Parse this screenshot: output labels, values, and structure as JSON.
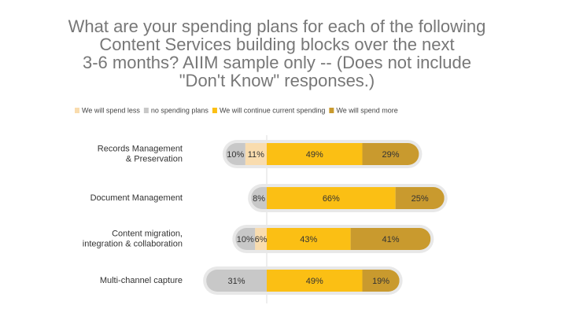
{
  "chart_data": {
    "type": "diverging-bar",
    "title": "What are your spending plans for each of the following\nContent Services building blocks over the next\n3-6 months? AIIM sample only -- (Does not include\n\"Don't Know\" responses.)",
    "categories": [
      "Records Management\n& Preservation",
      "Document Management",
      "Content migration,\nintegration & collaboration",
      "Multi-channel capture"
    ],
    "series": [
      {
        "name": "We will spend less",
        "color": "#f9dcae",
        "side": "left",
        "values": [
          11,
          null,
          6,
          null
        ],
        "value_labels": [
          "11%",
          null,
          "6%",
          null
        ]
      },
      {
        "name": "no spending plans",
        "color": "#c8c8c8",
        "side": "left",
        "values": [
          10,
          8,
          10,
          31
        ],
        "value_labels": [
          "10%",
          "8%",
          "10%",
          "31%"
        ]
      },
      {
        "name": "We will continue current spending",
        "color": "#fbbf14",
        "side": "right",
        "values": [
          49,
          66,
          43,
          49
        ],
        "value_labels": [
          "49%",
          "66%",
          "43%",
          "49%"
        ]
      },
      {
        "name": "We will spend more",
        "color": "#c99a2e",
        "side": "right",
        "values": [
          29,
          25,
          41,
          19
        ],
        "value_labels": [
          "29%",
          "25%",
          "41%",
          "19%"
        ]
      }
    ],
    "xlim": [
      -40,
      100
    ],
    "legend": "top"
  }
}
